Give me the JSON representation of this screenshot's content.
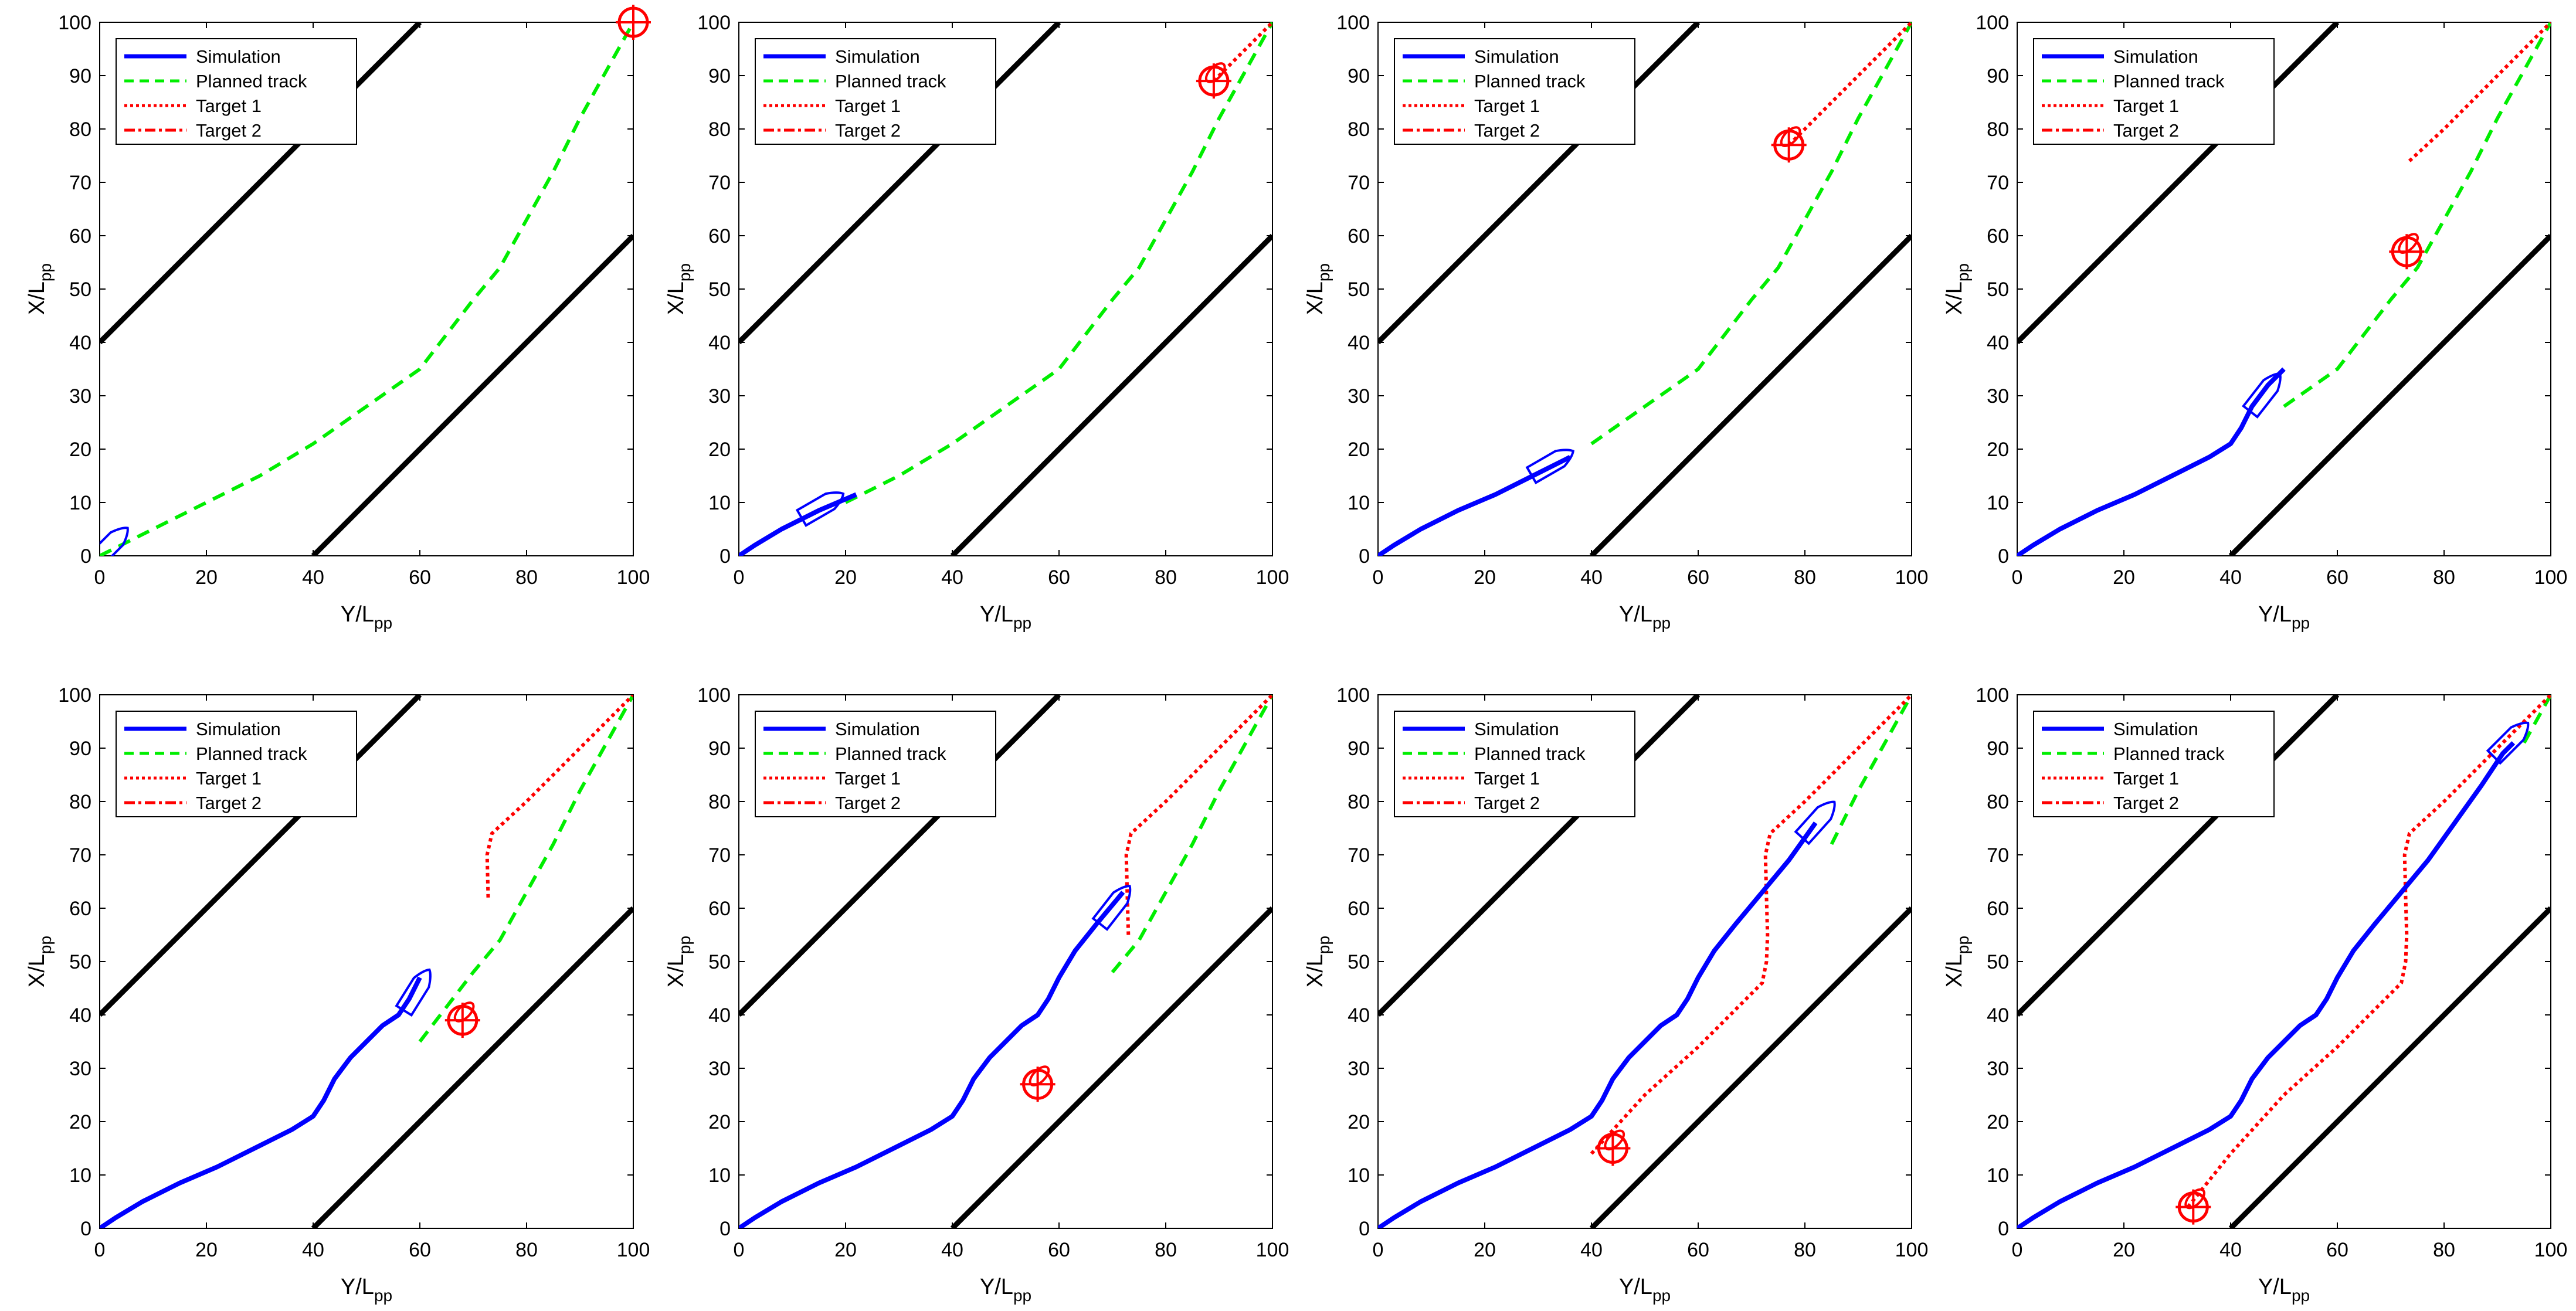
{
  "figure": {
    "layout": "2 rows x 4 columns of identical trajectory panels",
    "panel_count": 8
  },
  "colors": {
    "simulation": "#0000ff",
    "planned": "#00ee00",
    "target1": "#ff0000",
    "target2": "#ff0000",
    "boundary": "#000000",
    "axis": "#000000"
  },
  "legend_entries": [
    "Simulation",
    "Planned track",
    "Target 1",
    "Target 2"
  ],
  "axes": {
    "xlabel_main": "Y/L",
    "xlabel_sub": "pp",
    "ylabel_main": "X/L",
    "ylabel_sub": "pp",
    "xlim": [
      0,
      100
    ],
    "ylim": [
      0,
      100
    ],
    "xticks": [
      0,
      20,
      40,
      60,
      80,
      100
    ],
    "yticks": [
      0,
      10,
      20,
      30,
      40,
      50,
      60,
      70,
      80,
      90,
      100
    ]
  },
  "chart_data": {
    "type": "line",
    "description_free": true,
    "boundaries": [
      {
        "name": "upper-boundary",
        "points": [
          [
            0,
            40
          ],
          [
            60,
            100
          ]
        ]
      },
      {
        "name": "lower-boundary",
        "points": [
          [
            40,
            0
          ],
          [
            100,
            60
          ]
        ]
      }
    ],
    "planned_track": [
      [
        0,
        0
      ],
      [
        8,
        4
      ],
      [
        20,
        10
      ],
      [
        30,
        15
      ],
      [
        40,
        21
      ],
      [
        50,
        28
      ],
      [
        60,
        35
      ],
      [
        70,
        48
      ],
      [
        75,
        54
      ],
      [
        80,
        63
      ],
      [
        85,
        72
      ],
      [
        90,
        82
      ],
      [
        95,
        91
      ],
      [
        100,
        100
      ]
    ],
    "simulation_full": [
      [
        0,
        0
      ],
      [
        3,
        2
      ],
      [
        8,
        5
      ],
      [
        15,
        8.5
      ],
      [
        22,
        11.5
      ],
      [
        30,
        15.5
      ],
      [
        36,
        18.5
      ],
      [
        40,
        21
      ],
      [
        42,
        24
      ],
      [
        44,
        28
      ],
      [
        47,
        32
      ],
      [
        50,
        35
      ],
      [
        53,
        38
      ],
      [
        56,
        40
      ],
      [
        58,
        43
      ],
      [
        60,
        47
      ],
      [
        63,
        52
      ],
      [
        67,
        57
      ],
      [
        72,
        63
      ],
      [
        77,
        69
      ],
      [
        82,
        76
      ],
      [
        87,
        83
      ],
      [
        91,
        89
      ],
      [
        93,
        91
      ]
    ],
    "target1_track": [
      [
        32,
        4
      ],
      [
        40,
        14
      ],
      [
        50,
        25
      ],
      [
        60,
        34
      ],
      [
        69,
        43
      ],
      [
        72,
        46
      ],
      [
        72.8,
        50
      ],
      [
        73,
        55
      ],
      [
        72.8,
        62
      ],
      [
        72.6,
        70
      ],
      [
        73.5,
        74
      ],
      [
        80,
        80
      ],
      [
        90,
        90
      ],
      [
        100,
        100
      ]
    ],
    "panels": [
      {
        "id": 1,
        "sim_progress": 0,
        "target_progress": 0,
        "ship": {
          "x": 1.5,
          "y": 1.5,
          "heading_deg": 45
        },
        "target": {
          "x": 100,
          "y": 100
        }
      },
      {
        "id": 2,
        "sim_progress": 4,
        "target_progress": 0,
        "ship": {
          "x": 15,
          "y": 9,
          "heading_deg": 30
        },
        "target": {
          "x": 89,
          "y": 89
        }
      },
      {
        "id": 3,
        "sim_progress": 6,
        "target_progress": 0,
        "ship": {
          "x": 32,
          "y": 17,
          "heading_deg": 30
        },
        "target": {
          "x": 77,
          "y": 77
        }
      },
      {
        "id": 4,
        "sim_progress": 11,
        "target_progress": 3,
        "ship": {
          "x": 46,
          "y": 30,
          "heading_deg": 52
        },
        "target": {
          "x": 73,
          "y": 57
        }
      },
      {
        "id": 5,
        "sim_progress": 15,
        "target_progress": 5,
        "ship": {
          "x": 59,
          "y": 44,
          "heading_deg": 58
        },
        "target": {
          "x": 68,
          "y": 39
        }
      },
      {
        "id": 6,
        "sim_progress": 18,
        "target_progress": 6,
        "ship": {
          "x": 70,
          "y": 60,
          "heading_deg": 52
        },
        "target": {
          "x": 56,
          "y": 27
        }
      },
      {
        "id": 7,
        "sim_progress": 20,
        "target_progress": 12,
        "ship": {
          "x": 82,
          "y": 76,
          "heading_deg": 48
        },
        "target": {
          "x": 44,
          "y": 15
        }
      },
      {
        "id": 8,
        "sim_progress": 23,
        "target_progress": 13,
        "ship": {
          "x": 92,
          "y": 91,
          "heading_deg": 45
        },
        "target": {
          "x": 33,
          "y": 4
        }
      }
    ]
  }
}
